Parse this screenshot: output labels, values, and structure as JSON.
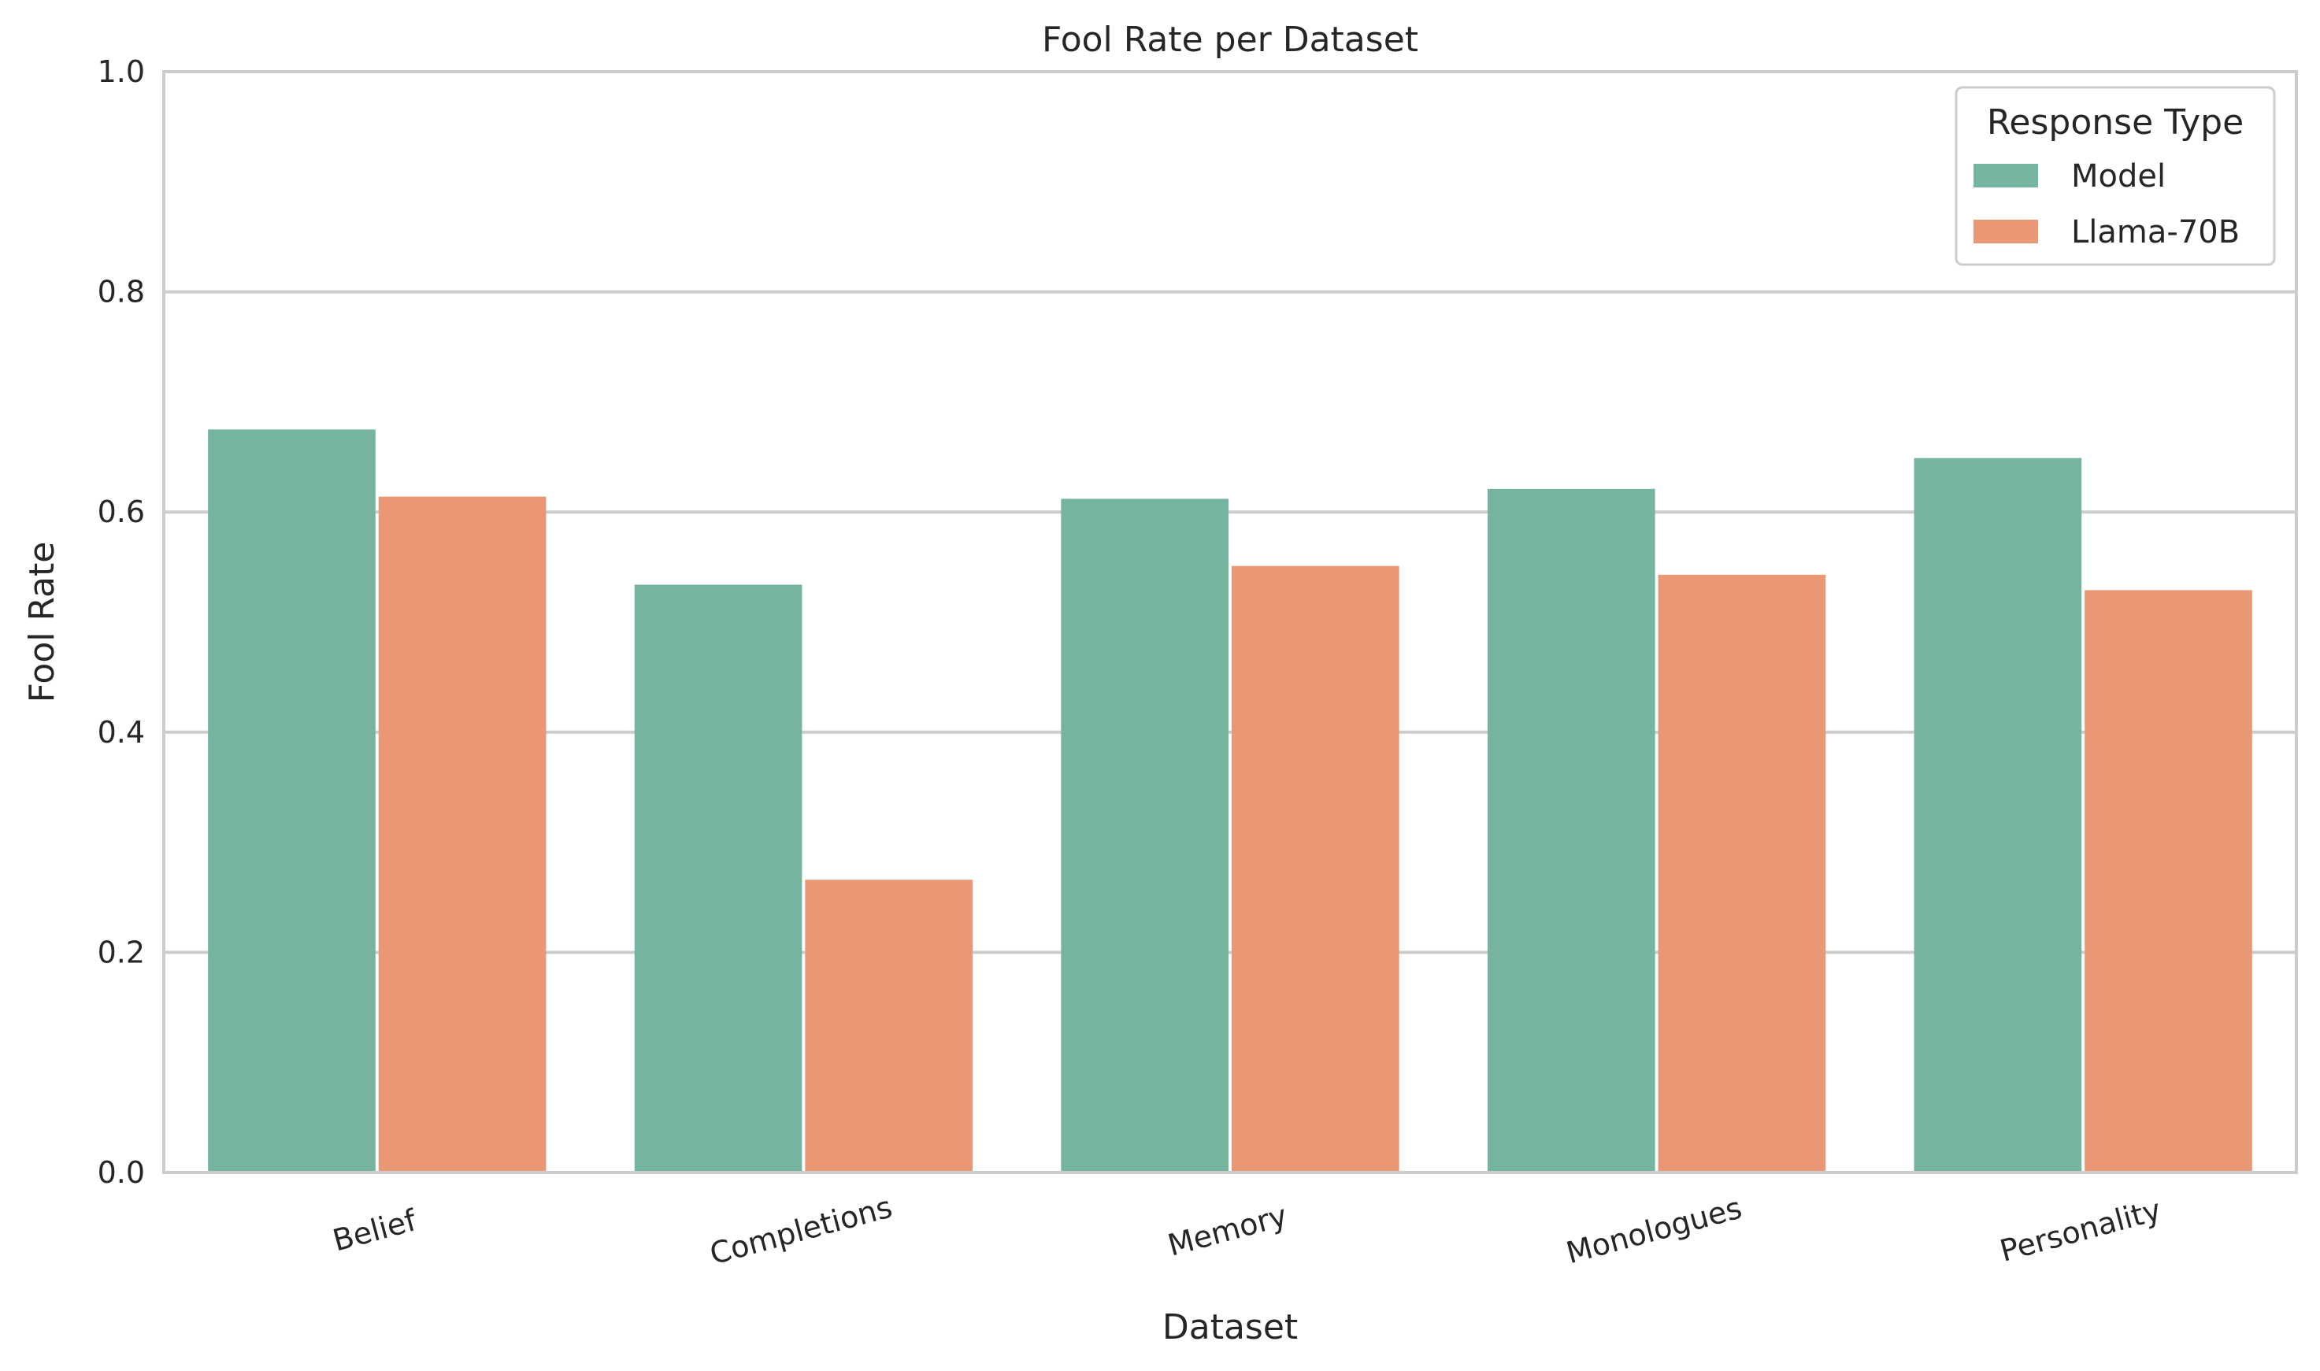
{
  "chart_data": {
    "type": "bar",
    "title": "Fool Rate per Dataset",
    "xlabel": "Dataset",
    "ylabel": "Fool Rate",
    "ylim": [
      0,
      1.0
    ],
    "yticks": [
      "0.0",
      "0.2",
      "0.4",
      "0.6",
      "0.8",
      "1.0"
    ],
    "categories": [
      "Belief",
      "Completions",
      "Memory",
      "Monologues",
      "Personality"
    ],
    "series": [
      {
        "name": "Model",
        "color": "#75b5a0",
        "values": [
          0.675,
          0.534,
          0.612,
          0.621,
          0.649
        ]
      },
      {
        "name": "Llama-70B",
        "color": "#e99775",
        "values": [
          0.614,
          0.266,
          0.551,
          0.543,
          0.529
        ]
      }
    ],
    "legend": {
      "title": "Response Type",
      "placement": "top-right"
    },
    "grid": "horizontal"
  }
}
